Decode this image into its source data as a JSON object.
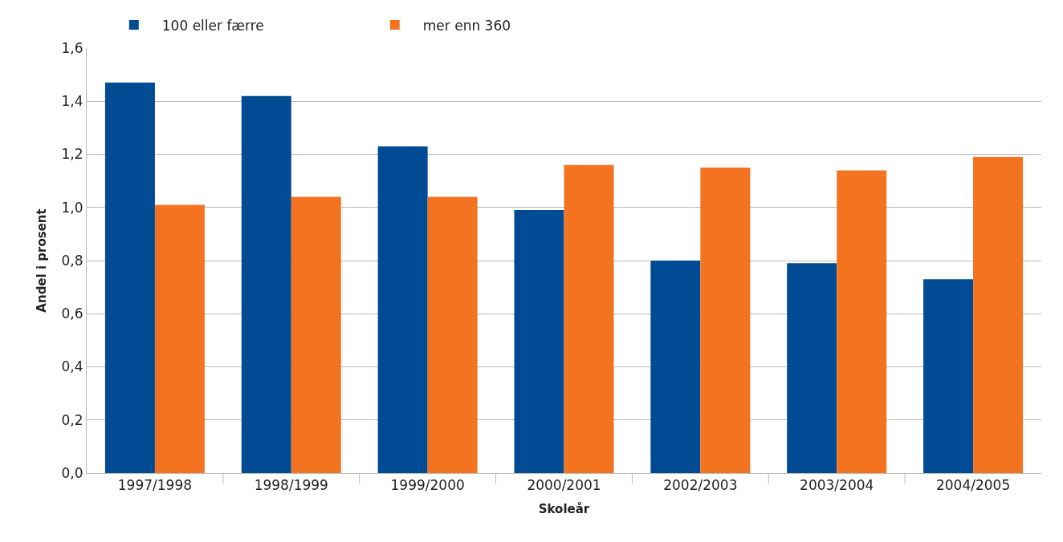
{
  "chart_data": {
    "type": "bar",
    "xlabel": "Skoleår",
    "ylabel": "Andel i prosent",
    "categories": [
      "1997/1998",
      "1998/1999",
      "1999/2000",
      "2000/2001",
      "2002/2003",
      "2003/2004",
      "2004/2005"
    ],
    "series": [
      {
        "name": "100 eller færre",
        "color": "#004b93",
        "values": [
          1.47,
          1.42,
          1.23,
          0.99,
          0.8,
          0.79,
          0.73
        ]
      },
      {
        "name": "mer enn 360",
        "color": "#f47321",
        "values": [
          1.01,
          1.04,
          1.04,
          1.16,
          1.15,
          1.14,
          1.19
        ]
      }
    ],
    "ylim": [
      0,
      1.6
    ],
    "yticks": [
      {
        "value": 0,
        "label": "0,0"
      },
      {
        "value": 0.2,
        "label": "0,2"
      },
      {
        "value": 0.4,
        "label": "0,4"
      },
      {
        "value": 0.6,
        "label": "0,6"
      },
      {
        "value": 0.8,
        "label": "0,8"
      },
      {
        "value": 1.0,
        "label": "1,0"
      },
      {
        "value": 1.2,
        "label": "1,2"
      },
      {
        "value": 1.4,
        "label": "1,4"
      },
      {
        "value": 1.6,
        "label": "1,6"
      }
    ],
    "grid": "y",
    "legend": "top left"
  }
}
